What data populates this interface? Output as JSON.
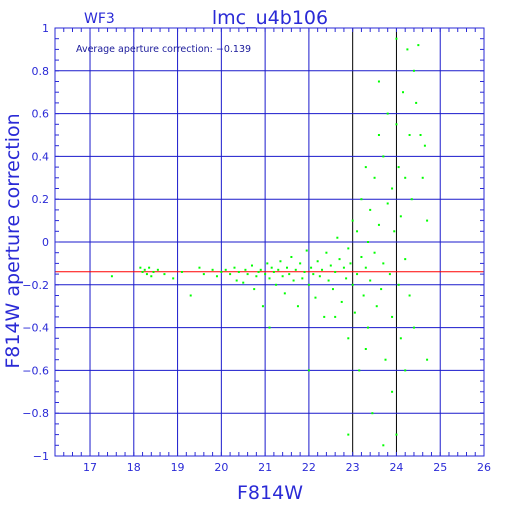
{
  "chart_data": {
    "type": "scatter",
    "title": "lmc_u4b106",
    "corner_label": "WF3",
    "annotation": "Average aperture correction:  −0.139",
    "xlabel": "F814W",
    "ylabel": "F814W aperture correction",
    "xlim": [
      16.2,
      26.0
    ],
    "ylim": [
      -1.0,
      1.0
    ],
    "x_ticks": [
      17,
      18,
      19,
      20,
      21,
      22,
      23,
      24,
      25,
      26
    ],
    "x_tick_labels": [
      "17",
      "18",
      "19",
      "20",
      "21",
      "22",
      "23",
      "24",
      "25",
      "26"
    ],
    "y_ticks": [
      -1,
      -0.8,
      -0.6,
      -0.4,
      -0.2,
      0,
      0.2,
      0.4,
      0.6,
      0.8,
      1
    ],
    "y_tick_labels": [
      "−1",
      "−0.8",
      "−0.6",
      "−0.4",
      "−0.2",
      "0",
      "0.2",
      "0.4",
      "0.6",
      "0.8",
      "1"
    ],
    "grid": true,
    "reference_line": {
      "y": -0.139,
      "color": "#ff0000"
    },
    "point_color": "#00ff00",
    "axis_color": "#2a2ad6",
    "grid_color": "#1a1acc",
    "highlight_grid_color": "#000000",
    "points": [
      [
        17.5,
        -0.16
      ],
      [
        18.15,
        -0.12
      ],
      [
        18.2,
        -0.14
      ],
      [
        18.25,
        -0.13
      ],
      [
        18.3,
        -0.15
      ],
      [
        18.35,
        -0.12
      ],
      [
        18.4,
        -0.16
      ],
      [
        18.45,
        -0.14
      ],
      [
        18.55,
        -0.13
      ],
      [
        18.7,
        -0.15
      ],
      [
        18.9,
        -0.17
      ],
      [
        19.1,
        -0.14
      ],
      [
        19.3,
        -0.25
      ],
      [
        19.5,
        -0.12
      ],
      [
        19.6,
        -0.15
      ],
      [
        19.8,
        -0.13
      ],
      [
        19.9,
        -0.16
      ],
      [
        20.0,
        -0.14
      ],
      [
        20.1,
        -0.13
      ],
      [
        20.2,
        -0.15
      ],
      [
        20.3,
        -0.12
      ],
      [
        20.35,
        -0.18
      ],
      [
        20.4,
        -0.14
      ],
      [
        20.5,
        -0.19
      ],
      [
        20.55,
        -0.13
      ],
      [
        20.6,
        -0.15
      ],
      [
        20.7,
        -0.11
      ],
      [
        20.75,
        -0.22
      ],
      [
        20.8,
        -0.16
      ],
      [
        20.85,
        -0.14
      ],
      [
        20.9,
        -0.13
      ],
      [
        20.95,
        -0.3
      ],
      [
        21.0,
        -0.15
      ],
      [
        21.05,
        -0.1
      ],
      [
        21.1,
        -0.17
      ],
      [
        21.1,
        -0.4
      ],
      [
        21.15,
        -0.12
      ],
      [
        21.2,
        -0.14
      ],
      [
        21.25,
        -0.2
      ],
      [
        21.3,
        -0.13
      ],
      [
        21.35,
        -0.09
      ],
      [
        21.4,
        -0.16
      ],
      [
        21.45,
        -0.24
      ],
      [
        21.5,
        -0.12
      ],
      [
        21.55,
        -0.15
      ],
      [
        21.6,
        -0.07
      ],
      [
        21.65,
        -0.18
      ],
      [
        21.7,
        -0.13
      ],
      [
        21.75,
        -0.3
      ],
      [
        21.8,
        -0.1
      ],
      [
        21.85,
        -0.17
      ],
      [
        21.9,
        -0.14
      ],
      [
        21.95,
        -0.04
      ],
      [
        22.0,
        -0.2
      ],
      [
        22.0,
        -0.6
      ],
      [
        22.05,
        -0.12
      ],
      [
        22.1,
        -0.15
      ],
      [
        22.15,
        -0.26
      ],
      [
        22.2,
        -0.09
      ],
      [
        22.25,
        -0.16
      ],
      [
        22.3,
        -0.13
      ],
      [
        22.35,
        -0.35
      ],
      [
        22.4,
        -0.05
      ],
      [
        22.45,
        -0.18
      ],
      [
        22.5,
        -0.11
      ],
      [
        22.55,
        -0.22
      ],
      [
        22.6,
        -0.14
      ],
      [
        22.65,
        0.02
      ],
      [
        22.7,
        -0.08
      ],
      [
        22.75,
        -0.28
      ],
      [
        22.8,
        -0.12
      ],
      [
        22.85,
        -0.17
      ],
      [
        22.9,
        -0.03
      ],
      [
        22.9,
        -0.45
      ],
      [
        22.95,
        -0.1
      ],
      [
        23.0,
        0.1
      ],
      [
        23.0,
        -0.2
      ],
      [
        23.05,
        -0.33
      ],
      [
        23.1,
        0.05
      ],
      [
        23.1,
        -0.15
      ],
      [
        23.15,
        -0.6
      ],
      [
        23.2,
        0.2
      ],
      [
        23.2,
        -0.07
      ],
      [
        23.25,
        -0.25
      ],
      [
        23.3,
        0.35
      ],
      [
        23.3,
        -0.12
      ],
      [
        23.35,
        0.0
      ],
      [
        23.35,
        -0.4
      ],
      [
        23.4,
        0.15
      ],
      [
        23.4,
        -0.18
      ],
      [
        23.45,
        -0.8
      ],
      [
        23.5,
        0.3
      ],
      [
        23.5,
        -0.05
      ],
      [
        23.55,
        -0.3
      ],
      [
        23.6,
        0.5
      ],
      [
        23.6,
        0.08
      ],
      [
        23.65,
        -0.22
      ],
      [
        23.7,
        0.4
      ],
      [
        23.7,
        -0.1
      ],
      [
        23.75,
        -0.55
      ],
      [
        23.8,
        0.6
      ],
      [
        23.8,
        0.18
      ],
      [
        23.85,
        -0.15
      ],
      [
        23.9,
        0.25
      ],
      [
        23.9,
        -0.35
      ],
      [
        23.95,
        0.05
      ],
      [
        24.0,
        0.55
      ],
      [
        24.0,
        -0.9
      ],
      [
        24.05,
        0.35
      ],
      [
        24.05,
        -0.2
      ],
      [
        24.1,
        0.12
      ],
      [
        24.1,
        -0.45
      ],
      [
        24.15,
        0.7
      ],
      [
        24.2,
        0.3
      ],
      [
        24.2,
        -0.08
      ],
      [
        24.25,
        0.9
      ],
      [
        24.3,
        0.5
      ],
      [
        24.3,
        -0.25
      ],
      [
        24.35,
        0.2
      ],
      [
        24.4,
        0.8
      ],
      [
        24.4,
        -0.4
      ],
      [
        24.45,
        0.65
      ],
      [
        24.5,
        0.92
      ],
      [
        24.55,
        0.5
      ],
      [
        24.6,
        0.3
      ],
      [
        24.65,
        0.45
      ],
      [
        24.7,
        0.1
      ],
      [
        24.7,
        -0.55
      ],
      [
        24.0,
        0.95
      ],
      [
        23.9,
        -0.7
      ],
      [
        23.7,
        -0.95
      ],
      [
        24.2,
        -0.6
      ],
      [
        23.3,
        -0.5
      ],
      [
        22.6,
        -0.35
      ],
      [
        22.9,
        -0.9
      ],
      [
        23.6,
        0.75
      ]
    ]
  }
}
